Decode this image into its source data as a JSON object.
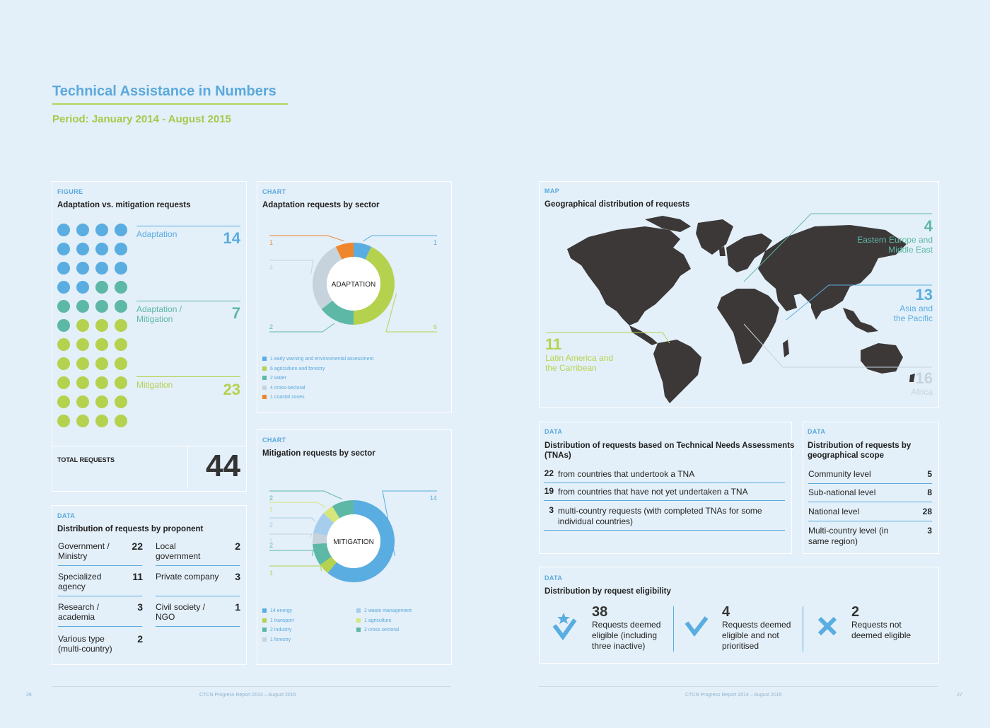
{
  "page": {
    "title": "Technical Assistance in Numbers",
    "period": "Period: January 2014 - August 2015",
    "footer_left": "CTCN Progress Report 2014 – August 2015",
    "footer_right": "CTCN Progress Report 2014 – August 2015",
    "page_left": "26",
    "page_right": "27"
  },
  "colors": {
    "adaptation": "#5aade0",
    "mixed": "#5db8a6",
    "mitigation": "#b5d24f",
    "grey": "#c7d3dc",
    "orange": "#f0862c",
    "light_green": "#d6e57c",
    "light_blue": "#a6cdeb"
  },
  "figure": {
    "tag": "FIGURE",
    "heading": "Adaptation vs. mitigation requests",
    "adaptation_label": "Adaptation",
    "adaptation_value": "14",
    "mixed_label_1": "Adaptation /",
    "mixed_label_2": "Mitigation",
    "mixed_value": "7",
    "mitigation_label": "Mitigation",
    "mitigation_value": "23",
    "total_label": "TOTAL REQUESTS",
    "total_value": "44"
  },
  "proponent": {
    "tag": "DATA",
    "heading": "Distribution of requests by proponent",
    "items": [
      {
        "label": "Government / Ministry",
        "value": "22"
      },
      {
        "label": "Local government",
        "value": "2"
      },
      {
        "label": "Specialized agency",
        "value": "11"
      },
      {
        "label": "Private company",
        "value": "3"
      },
      {
        "label": "Research / academia",
        "value": "3"
      },
      {
        "label": "Civil society / NGO",
        "value": "1"
      },
      {
        "label": "Various type (multi-country)",
        "value": "2"
      }
    ]
  },
  "chart_data": [
    {
      "type": "pie",
      "tag": "CHART",
      "title": "Adaptation requests by sector",
      "center_label": "ADAPTATION",
      "categories": [
        "early warning and environmental assessment",
        "agriculture and forestry",
        "water",
        "cross-sectoral",
        "coastal zones"
      ],
      "values": [
        1,
        6,
        2,
        4,
        1
      ],
      "colors": [
        "#5aade0",
        "#b5d24f",
        "#5db8a6",
        "#c7d3dc",
        "#f0862c"
      ]
    },
    {
      "type": "pie",
      "tag": "CHART",
      "title": "Mitigation requests by sector",
      "center_label": "MITIGATION",
      "categories": [
        "energy",
        "transport",
        "industry",
        "forestry",
        "waste management",
        "agriculture",
        "cross sectoral"
      ],
      "values": [
        14,
        1,
        2,
        1,
        2,
        1,
        2
      ],
      "colors": [
        "#5aade0",
        "#b5d24f",
        "#5db8a6",
        "#c7d3dc",
        "#a6cdeb",
        "#d6e57c",
        "#5db8a6"
      ]
    }
  ],
  "map": {
    "tag": "MAP",
    "heading": "Geographical distribution of requests",
    "regions": [
      {
        "value": "4",
        "label1": "Eastern Europe and",
        "label2": "Middle East"
      },
      {
        "value": "13",
        "label1": "Asia and",
        "label2": "the Pacific"
      },
      {
        "value": "11",
        "label1": "Latin America and",
        "label2": "the Carribean"
      },
      {
        "value": "16",
        "label1": "Africa",
        "label2": ""
      }
    ]
  },
  "tna": {
    "tag": "DATA",
    "heading_1": "Distribution of requests based on Technical Needs Assessments",
    "heading_2": "(TNAs)",
    "items": [
      {
        "value": "22",
        "text": "from countries that undertook a TNA"
      },
      {
        "value": "19",
        "text": "from countries that have not yet undertaken a TNA"
      },
      {
        "value": "3",
        "text": "multi-country requests (with completed TNAs for some individual countries)"
      }
    ]
  },
  "scope": {
    "tag": "DATA",
    "heading": "Distribution of requests by geographical scope",
    "items": [
      {
        "label": "Community level",
        "value": "5"
      },
      {
        "label": "Sub-national level",
        "value": "8"
      },
      {
        "label": "National level",
        "value": "28"
      },
      {
        "label": "Multi-country level (in same region)",
        "value": "3"
      }
    ]
  },
  "eligibility": {
    "tag": "DATA",
    "heading": "Distribution by request eligibility",
    "items": [
      {
        "icon": "star-check-icon",
        "value": "38",
        "text": "Requests deemed eligible (including three inactive)"
      },
      {
        "icon": "check-icon",
        "value": "4",
        "text": "Requests deemed eligible and not prioritised"
      },
      {
        "icon": "cross-icon",
        "value": "2",
        "text": "Requests not deemed eligible"
      }
    ]
  }
}
